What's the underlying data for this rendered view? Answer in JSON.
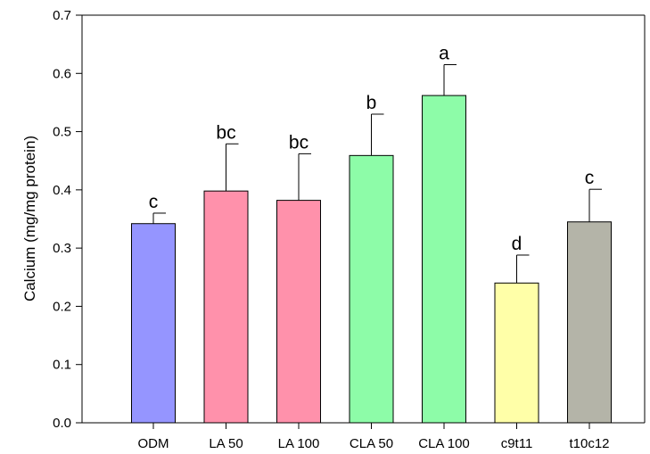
{
  "chart_data": {
    "type": "bar",
    "title": "",
    "xlabel": "",
    "ylabel": "Calcium (mg/mg protein)",
    "ylim": [
      0,
      0.7
    ],
    "yticks": [
      "0.0",
      "0.1",
      "0.2",
      "0.3",
      "0.4",
      "0.5",
      "0.6",
      "0.7"
    ],
    "grid": false,
    "legend": "none",
    "categories": [
      "ODM",
      "LA 50",
      "LA 100",
      "CLA 50",
      "CLA 100",
      "c9t11",
      "t10c12"
    ],
    "values": [
      0.342,
      0.398,
      0.382,
      0.459,
      0.562,
      0.24,
      0.345
    ],
    "error_upper": [
      0.018,
      0.081,
      0.08,
      0.071,
      0.053,
      0.048,
      0.056
    ],
    "significance_labels": [
      "c",
      "bc",
      "bc",
      "b",
      "a",
      "d",
      "c"
    ],
    "colors": [
      "#9595ff",
      "#ff91ab",
      "#ff91ab",
      "#8dfca8",
      "#8dfca8",
      "#ffffa8",
      "#b4b4a8"
    ]
  }
}
